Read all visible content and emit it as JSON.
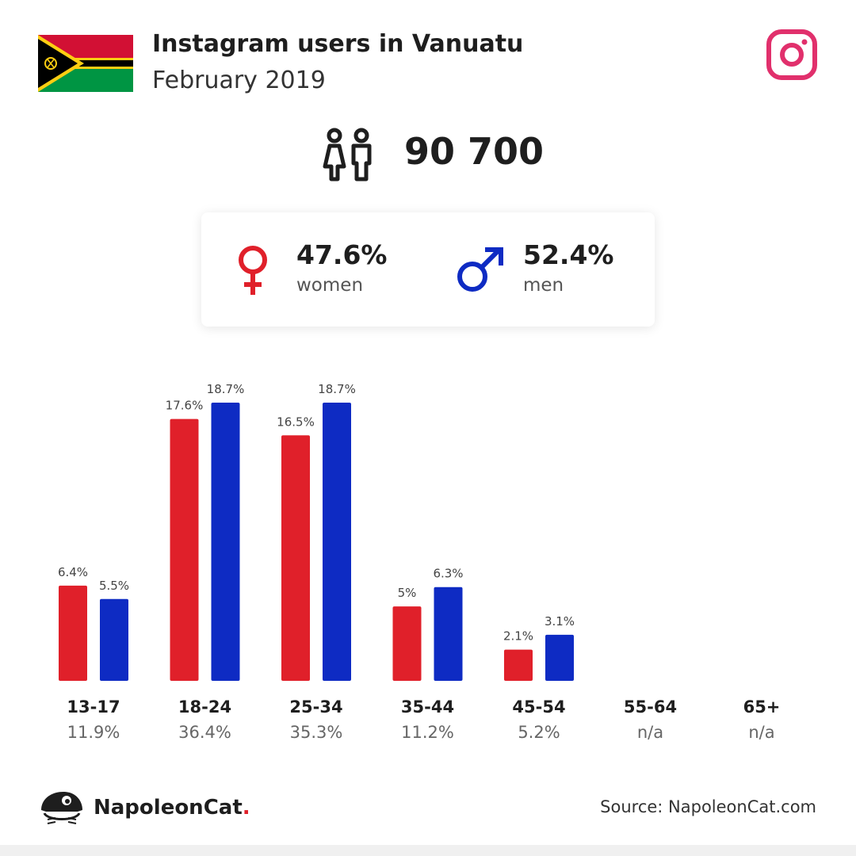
{
  "header": {
    "title": "Instagram users in Vanuatu",
    "subtitle": "February 2019"
  },
  "summary": {
    "total_users": "90 700",
    "women_percent": "47.6%",
    "women_label": "women",
    "men_percent": "52.4%",
    "men_label": "men"
  },
  "colors": {
    "women": "#e0202a",
    "men": "#0e2bc3",
    "instagram": "#e1306c"
  },
  "chart_data": {
    "type": "bar",
    "categories": [
      "13-17",
      "18-24",
      "25-34",
      "35-44",
      "45-54",
      "55-64",
      "65+"
    ],
    "category_totals": [
      "11.9%",
      "36.4%",
      "35.3%",
      "11.2%",
      "5.2%",
      "n/a",
      "n/a"
    ],
    "series": [
      {
        "values": [
          6.4,
          17.6,
          16.5,
          5.0,
          2.1,
          null,
          null
        ],
        "labels": [
          "6.4%",
          "17.6%",
          "16.5%",
          "5%",
          "2.1%",
          "",
          ""
        ]
      },
      {
        "values": [
          5.5,
          18.7,
          18.7,
          6.3,
          3.1,
          null,
          null
        ],
        "labels": [
          "5.5%",
          "18.7%",
          "18.7%",
          "6.3%",
          "3.1%",
          "",
          ""
        ]
      }
    ],
    "ylim": [
      0,
      18.7
    ],
    "grid": false
  },
  "footer": {
    "brand_name": "NapoleonCat",
    "brand_dot": ".",
    "source": "Source: NapoleonCat.com"
  }
}
